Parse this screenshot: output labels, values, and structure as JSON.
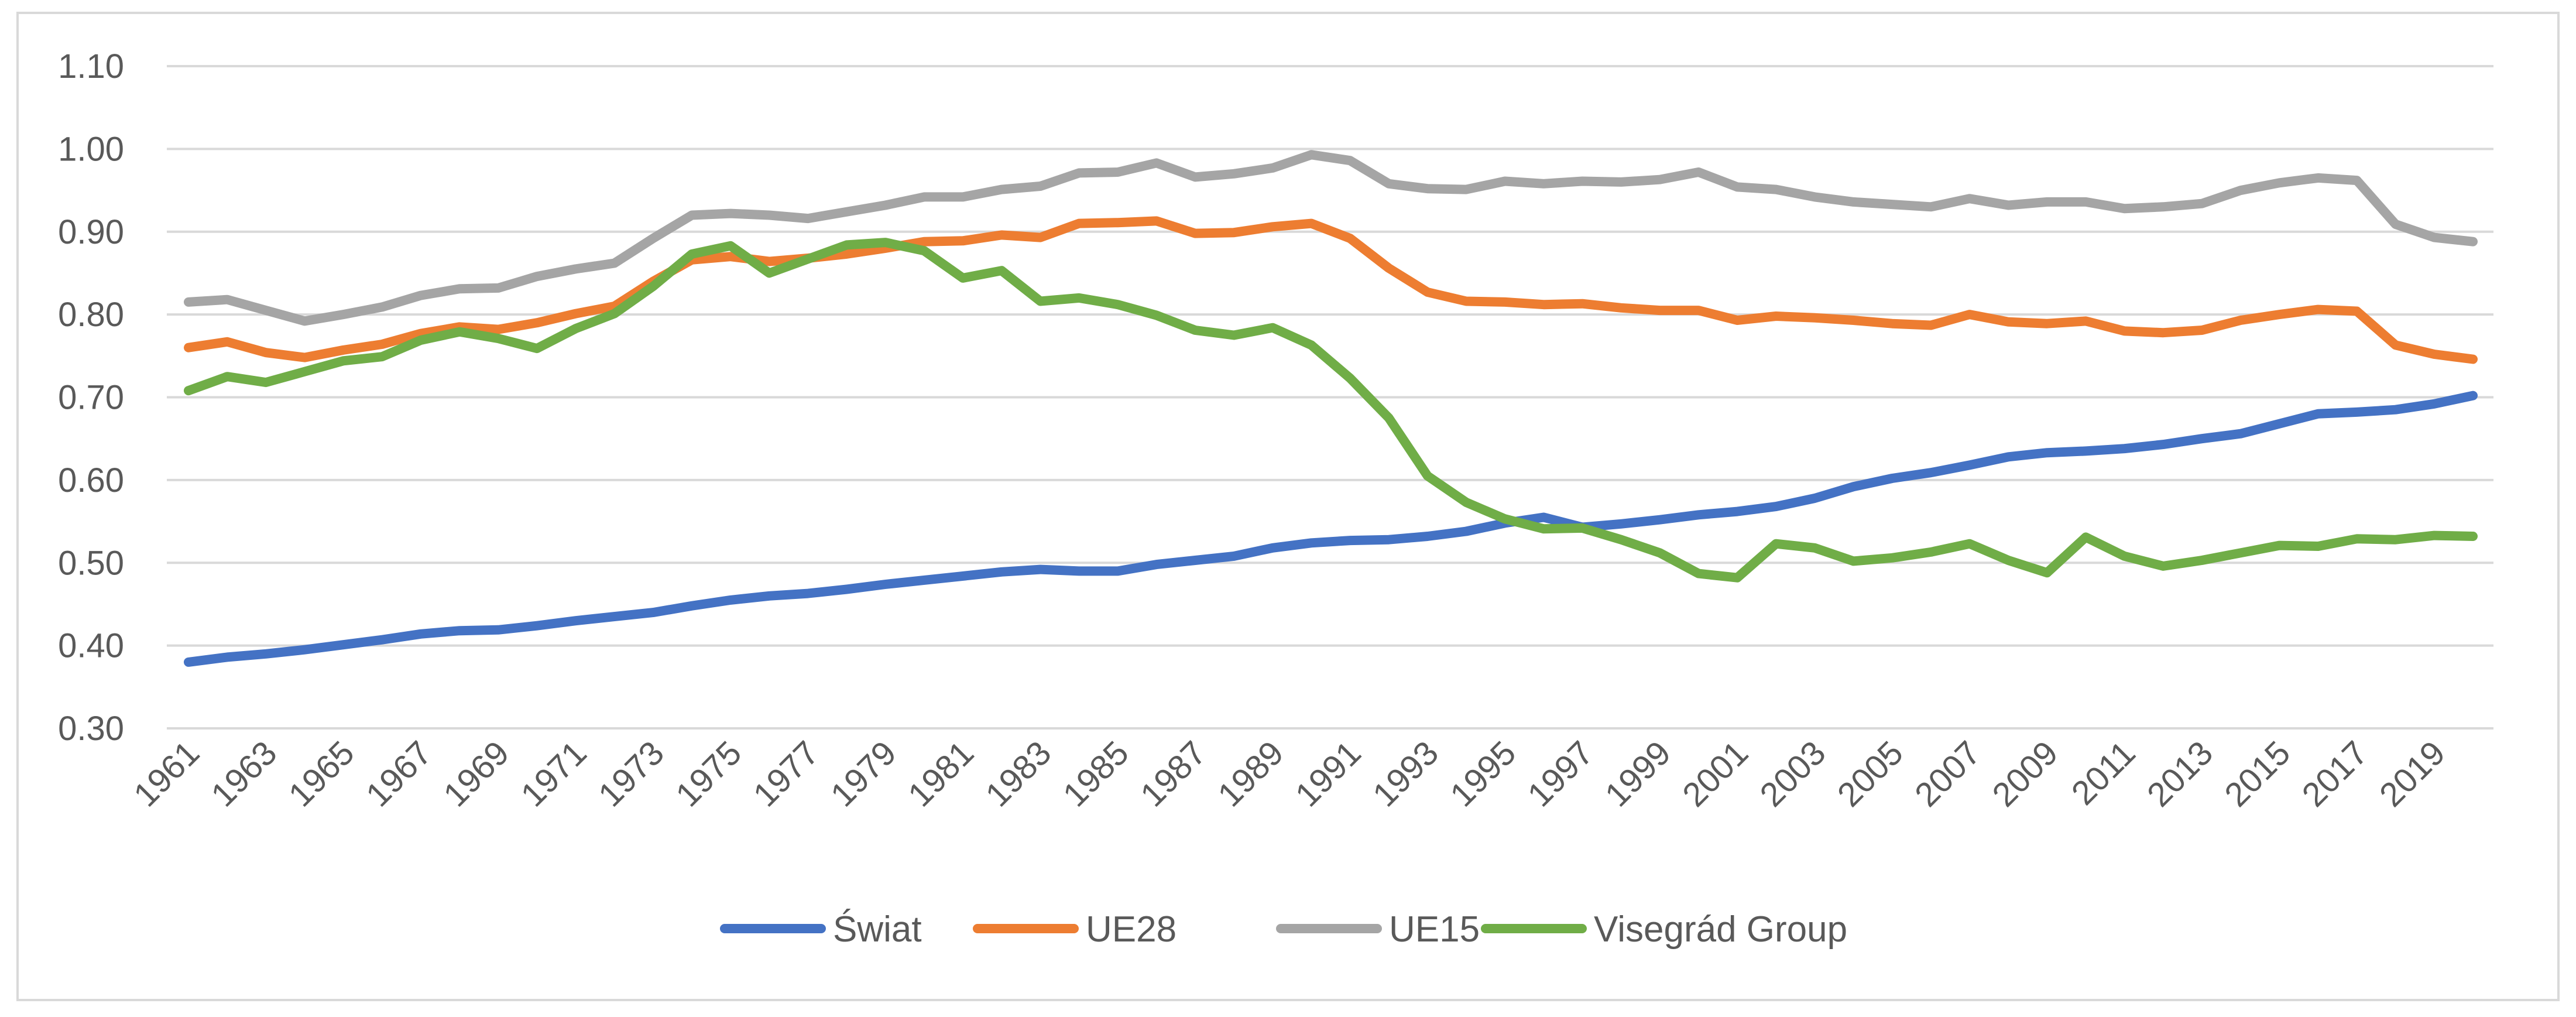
{
  "chart_data": {
    "type": "line",
    "title": "",
    "xlabel": "",
    "ylabel": "",
    "ylim": [
      0.3,
      1.1
    ],
    "y_ticks": [
      "0.30",
      "0.40",
      "0.50",
      "0.60",
      "0.70",
      "0.80",
      "0.90",
      "1.00",
      "1.10"
    ],
    "x_tick_labels": [
      "1961",
      "1963",
      "1965",
      "1967",
      "1969",
      "1971",
      "1973",
      "1975",
      "1977",
      "1979",
      "1981",
      "1983",
      "1985",
      "1987",
      "1989",
      "1991",
      "1993",
      "1995",
      "1997",
      "1999",
      "2001",
      "2003",
      "2005",
      "2007",
      "2009",
      "2011",
      "2013",
      "2015",
      "2017",
      "2019"
    ],
    "x_start": 1961,
    "x_end": 2020,
    "grid": true,
    "legend_position": "bottom",
    "series": [
      {
        "name": "Świat",
        "color": "#4472c4",
        "values": [
          0.38,
          0.386,
          0.39,
          0.395,
          0.401,
          0.407,
          0.414,
          0.418,
          0.419,
          0.424,
          0.43,
          0.435,
          0.44,
          0.448,
          0.455,
          0.46,
          0.463,
          0.468,
          0.474,
          0.479,
          0.484,
          0.489,
          0.492,
          0.49,
          0.49,
          0.498,
          0.503,
          0.508,
          0.518,
          0.524,
          0.527,
          0.528,
          0.532,
          0.538,
          0.548,
          0.555,
          0.543,
          0.547,
          0.552,
          0.558,
          0.562,
          0.568,
          0.578,
          0.592,
          0.602,
          0.609,
          0.618,
          0.628,
          0.633,
          0.635,
          0.638,
          0.643,
          0.65,
          0.656,
          0.668,
          0.68,
          0.682,
          0.685,
          0.692,
          0.702
        ]
      },
      {
        "name": "UE28",
        "color": "#ed7d31",
        "values": [
          0.76,
          0.767,
          0.754,
          0.748,
          0.757,
          0.764,
          0.777,
          0.785,
          0.782,
          0.79,
          0.801,
          0.81,
          0.84,
          0.866,
          0.87,
          0.864,
          0.868,
          0.873,
          0.88,
          0.888,
          0.889,
          0.896,
          0.893,
          0.91,
          0.911,
          0.913,
          0.898,
          0.899,
          0.906,
          0.91,
          0.892,
          0.856,
          0.827,
          0.816,
          0.815,
          0.812,
          0.813,
          0.808,
          0.805,
          0.805,
          0.793,
          0.798,
          0.796,
          0.793,
          0.789,
          0.787,
          0.8,
          0.791,
          0.789,
          0.792,
          0.78,
          0.778,
          0.781,
          0.793,
          0.8,
          0.806,
          0.804,
          0.763,
          0.752,
          0.746
        ]
      },
      {
        "name": "UE15",
        "color": "#a5a5a5",
        "values": [
          0.815,
          0.818,
          0.805,
          0.792,
          0.8,
          0.809,
          0.823,
          0.831,
          0.832,
          0.846,
          0.855,
          0.862,
          0.892,
          0.92,
          0.922,
          0.92,
          0.916,
          0.924,
          0.932,
          0.942,
          0.942,
          0.951,
          0.955,
          0.971,
          0.972,
          0.983,
          0.966,
          0.97,
          0.977,
          0.993,
          0.986,
          0.958,
          0.952,
          0.951,
          0.961,
          0.958,
          0.961,
          0.96,
          0.963,
          0.972,
          0.954,
          0.951,
          0.942,
          0.936,
          0.933,
          0.93,
          0.94,
          0.932,
          0.936,
          0.936,
          0.928,
          0.93,
          0.934,
          0.95,
          0.959,
          0.965,
          0.962,
          0.909,
          0.893,
          0.888
        ]
      },
      {
        "name": "Visegrád Group",
        "color": "#70ad47",
        "values": [
          0.708,
          0.725,
          0.718,
          0.731,
          0.744,
          0.749,
          0.769,
          0.779,
          0.771,
          0.759,
          0.783,
          0.801,
          0.834,
          0.873,
          0.883,
          0.85,
          0.867,
          0.884,
          0.887,
          0.877,
          0.844,
          0.853,
          0.816,
          0.82,
          0.812,
          0.799,
          0.781,
          0.775,
          0.784,
          0.763,
          0.723,
          0.675,
          0.605,
          0.573,
          0.553,
          0.541,
          0.542,
          0.528,
          0.512,
          0.487,
          0.482,
          0.523,
          0.518,
          0.502,
          0.506,
          0.513,
          0.523,
          0.503,
          0.488,
          0.531,
          0.508,
          0.496,
          0.503,
          0.512,
          0.521,
          0.52,
          0.529,
          0.528,
          0.533,
          0.532
        ]
      }
    ]
  }
}
